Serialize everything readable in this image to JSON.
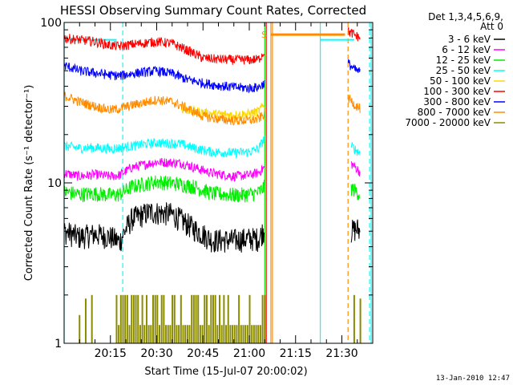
{
  "chart_data": {
    "type": "line",
    "title": "HESSI Observing Summary Count Rates, Corrected",
    "xlabel": "Start Time (15-Jul-07 20:00:02)",
    "ylabel": "Corrected Count Rate (s⁻¹ detector⁻¹)",
    "y_scale": "log",
    "ylim": [
      1,
      100
    ],
    "y_tick_labels": [
      "1",
      "10",
      "100"
    ],
    "x_range_minutes": [
      0,
      100
    ],
    "x_tick_labels": [
      "20:15",
      "20:30",
      "20:45",
      "21:00",
      "21:15",
      "21:30"
    ],
    "x_tick_minutes": [
      15,
      30,
      45,
      60,
      75,
      90
    ],
    "legend_header": [
      "Det 1,3,4,5,6,9,",
      "Att 0"
    ],
    "legend_position": "top-right, outside plot",
    "series": [
      {
        "name": "3 - 6 keV",
        "color": "#000000",
        "points": [
          [
            0,
            5
          ],
          [
            5,
            4.6
          ],
          [
            10,
            4.8
          ],
          [
            15,
            4.6
          ],
          [
            18,
            4.3
          ],
          [
            22,
            6
          ],
          [
            28,
            6.6
          ],
          [
            35,
            6.4
          ],
          [
            42,
            5.2
          ],
          [
            48,
            4.4
          ],
          [
            55,
            4.4
          ],
          [
            60,
            4.5
          ],
          [
            63,
            4.5
          ],
          [
            65,
            5.2
          ]
        ],
        "post_gap": [
          [
            93,
            5.0
          ],
          [
            95,
            5.2
          ],
          [
            96,
            4.9
          ]
        ]
      },
      {
        "name": "6 - 12 keV",
        "color": "#ff00ff",
        "points": [
          [
            0,
            11.5
          ],
          [
            5,
            11
          ],
          [
            10,
            11.3
          ],
          [
            15,
            11
          ],
          [
            18,
            11.2
          ],
          [
            22,
            12.5
          ],
          [
            30,
            13.5
          ],
          [
            38,
            13.3
          ],
          [
            42,
            12.5
          ],
          [
            48,
            11.5
          ],
          [
            55,
            11
          ],
          [
            60,
            11.2
          ],
          [
            63,
            11.6
          ],
          [
            65,
            12.5
          ]
        ],
        "post_gap": [
          [
            93,
            13.2
          ],
          [
            95,
            12.2
          ],
          [
            96,
            11.6
          ]
        ]
      },
      {
        "name": "12 - 25 keV",
        "color": "#00ee00",
        "points": [
          [
            0,
            8.8
          ],
          [
            5,
            8.5
          ],
          [
            10,
            8.6
          ],
          [
            15,
            8.4
          ],
          [
            18,
            8.5
          ],
          [
            22,
            9.5
          ],
          [
            30,
            10.2
          ],
          [
            38,
            9.8
          ],
          [
            42,
            9.5
          ],
          [
            48,
            8.6
          ],
          [
            55,
            8.4
          ],
          [
            60,
            8.5
          ],
          [
            63,
            8.7
          ],
          [
            65,
            9.5
          ]
        ],
        "post_gap": [
          [
            93,
            9.3
          ],
          [
            95,
            8.8
          ],
          [
            96,
            8.4
          ]
        ]
      },
      {
        "name": "25 - 50 keV",
        "color": "#00ffff",
        "points": [
          [
            0,
            17
          ],
          [
            5,
            16.5
          ],
          [
            10,
            16.6
          ],
          [
            15,
            16.3
          ],
          [
            18,
            16.5
          ],
          [
            22,
            17
          ],
          [
            30,
            17.8
          ],
          [
            38,
            17.5
          ],
          [
            42,
            16.5
          ],
          [
            48,
            15.6
          ],
          [
            55,
            15.4
          ],
          [
            60,
            15.6
          ],
          [
            63,
            16.3
          ],
          [
            65,
            19
          ]
        ],
        "post_gap": [
          [
            93,
            17
          ],
          [
            95,
            15.8
          ],
          [
            96,
            15.2
          ]
        ]
      },
      {
        "name": "50 - 100 keV",
        "color": "#ffd700",
        "points": [
          [
            38,
            29
          ],
          [
            42,
            28
          ],
          [
            48,
            27
          ],
          [
            55,
            26.5
          ],
          [
            60,
            27
          ],
          [
            63,
            28
          ],
          [
            65,
            31
          ]
        ],
        "post_gap": []
      },
      {
        "name": "100 - 300 keV",
        "color": "#ff0000",
        "points": [
          [
            0,
            80
          ],
          [
            5,
            78
          ],
          [
            10,
            76
          ],
          [
            15,
            72
          ],
          [
            18,
            71
          ],
          [
            22,
            73
          ],
          [
            30,
            76
          ],
          [
            35,
            74
          ],
          [
            40,
            67
          ],
          [
            45,
            60
          ],
          [
            50,
            59
          ],
          [
            55,
            58.5
          ],
          [
            60,
            58.5
          ],
          [
            63,
            59
          ],
          [
            65,
            66
          ]
        ],
        "post_gap": [
          [
            92,
            88
          ],
          [
            94,
            84
          ],
          [
            96,
            80
          ]
        ]
      },
      {
        "name": "300 - 800 keV",
        "color": "#0000ff",
        "points": [
          [
            0,
            54
          ],
          [
            5,
            50
          ],
          [
            10,
            48.5
          ],
          [
            15,
            47
          ],
          [
            18,
            46.5
          ],
          [
            22,
            48
          ],
          [
            30,
            50
          ],
          [
            35,
            48
          ],
          [
            40,
            44
          ],
          [
            45,
            42
          ],
          [
            50,
            40.5
          ],
          [
            55,
            39.5
          ],
          [
            60,
            39
          ],
          [
            63,
            39.5
          ],
          [
            65,
            42
          ]
        ],
        "post_gap": [
          [
            92,
            56
          ],
          [
            94,
            51
          ],
          [
            96,
            49
          ]
        ]
      },
      {
        "name": "800 - 7000 keV",
        "color": "#ff8c00",
        "points": [
          [
            0,
            35
          ],
          [
            5,
            32
          ],
          [
            10,
            30
          ],
          [
            15,
            28.5
          ],
          [
            18,
            29
          ],
          [
            22,
            30.5
          ],
          [
            30,
            33
          ],
          [
            35,
            32
          ],
          [
            40,
            29
          ],
          [
            45,
            26
          ],
          [
            50,
            25
          ],
          [
            55,
            24.5
          ],
          [
            60,
            24.5
          ],
          [
            63,
            25
          ],
          [
            65,
            27
          ]
        ],
        "post_gap": [
          [
            92,
            34
          ],
          [
            94,
            31
          ],
          [
            96,
            29
          ]
        ]
      },
      {
        "name": "7000 - 20000 keV",
        "color": "#8b8b00",
        "points": [],
        "post_gap": []
      }
    ],
    "olive_bars": {
      "color": "#8b8b00",
      "bar_count": 70,
      "bar_minutes_range": [
        17,
        65
      ],
      "heights_two_levels": [
        1.3,
        2.0
      ],
      "trailing_bars_minutes": [
        [
          5,
          1.5
        ],
        [
          7,
          1.9
        ],
        [
          9,
          2.0
        ],
        [
          94,
          2.0
        ],
        [
          96,
          1.9
        ]
      ]
    },
    "markers": {
      "s_label": "S",
      "s_color": "#ff8c00",
      "s_text_color": "#ff8c00",
      "cyan_solid_minutes": [
        0,
        83,
        99.5
      ],
      "cyan_dashed_minutes": [
        19,
        99
      ],
      "orange_solid_minutes": [
        67,
        67.5
      ],
      "orange_dashed_minutes": [
        92
      ],
      "green_solid_minutes": [
        65
      ],
      "red_solid_minutes": [
        65.5
      ],
      "cyan_color": "#00ffff",
      "orange_color": "#ff8c00",
      "green_color": "#00ee00",
      "red_color": "#ff0000",
      "orange_bar_level": 84,
      "cyan_bar_level": 78,
      "orange_bar_span_minutes": [
        67,
        91
      ],
      "cyan_bar_span_minutes": [
        83,
        94
      ],
      "top_left_cyan_level": 78,
      "top_left_cyan_span_minutes": [
        2,
        17
      ]
    }
  },
  "footer_date": "13-Jan-2010 12:47"
}
